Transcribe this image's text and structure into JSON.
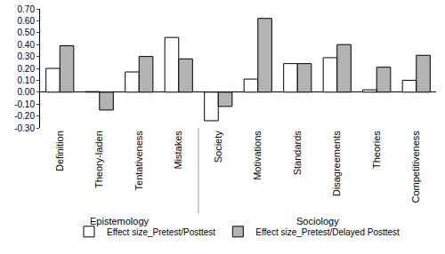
{
  "chart_data": {
    "type": "bar",
    "categories": [
      "Definition",
      "Theory-laden",
      "Tentativeness",
      "Mistakes",
      "Society",
      "Motivations",
      "Standards",
      "Disagreements",
      "Theories",
      "Competitiveness"
    ],
    "groups": [
      "Epistemology",
      "Epistemology",
      "Epistemology",
      "Epistemology",
      "Sociology",
      "Sociology",
      "Sociology",
      "Sociology",
      "Sociology",
      "Sociology"
    ],
    "series": [
      {
        "name": "Effect size_Pretest/Posttest",
        "color": "#ffffff",
        "values": [
          0.2,
          0.005,
          0.17,
          0.46,
          -0.24,
          0.11,
          0.24,
          0.29,
          0.02,
          0.1
        ]
      },
      {
        "name": "Effect size_Pretest/Delayed Posttest",
        "color": "#b3b3b3",
        "values": [
          0.39,
          -0.15,
          0.3,
          0.28,
          -0.12,
          0.62,
          0.24,
          0.4,
          0.21,
          0.31
        ]
      }
    ],
    "ylim": [
      -0.3,
      0.7
    ],
    "yticks": [
      {
        "value": -0.3,
        "label": "-0.30"
      },
      {
        "value": -0.2,
        "label": "-0.20"
      },
      {
        "value": -0.1,
        "label": "-0.10"
      },
      {
        "value": 0,
        "label": "0.00"
      },
      {
        "value": 0.1,
        "label": "0.10"
      },
      {
        "value": 0.2,
        "label": "0.20"
      },
      {
        "value": 0.3,
        "label": "0.30"
      },
      {
        "value": 0.4,
        "label": "0.40"
      },
      {
        "value": 0.5,
        "label": "0.50"
      },
      {
        "value": 0.6,
        "label": "0.60"
      },
      {
        "value": 0.7,
        "label": "0.70"
      }
    ],
    "grid": false,
    "legend": "bottom"
  }
}
